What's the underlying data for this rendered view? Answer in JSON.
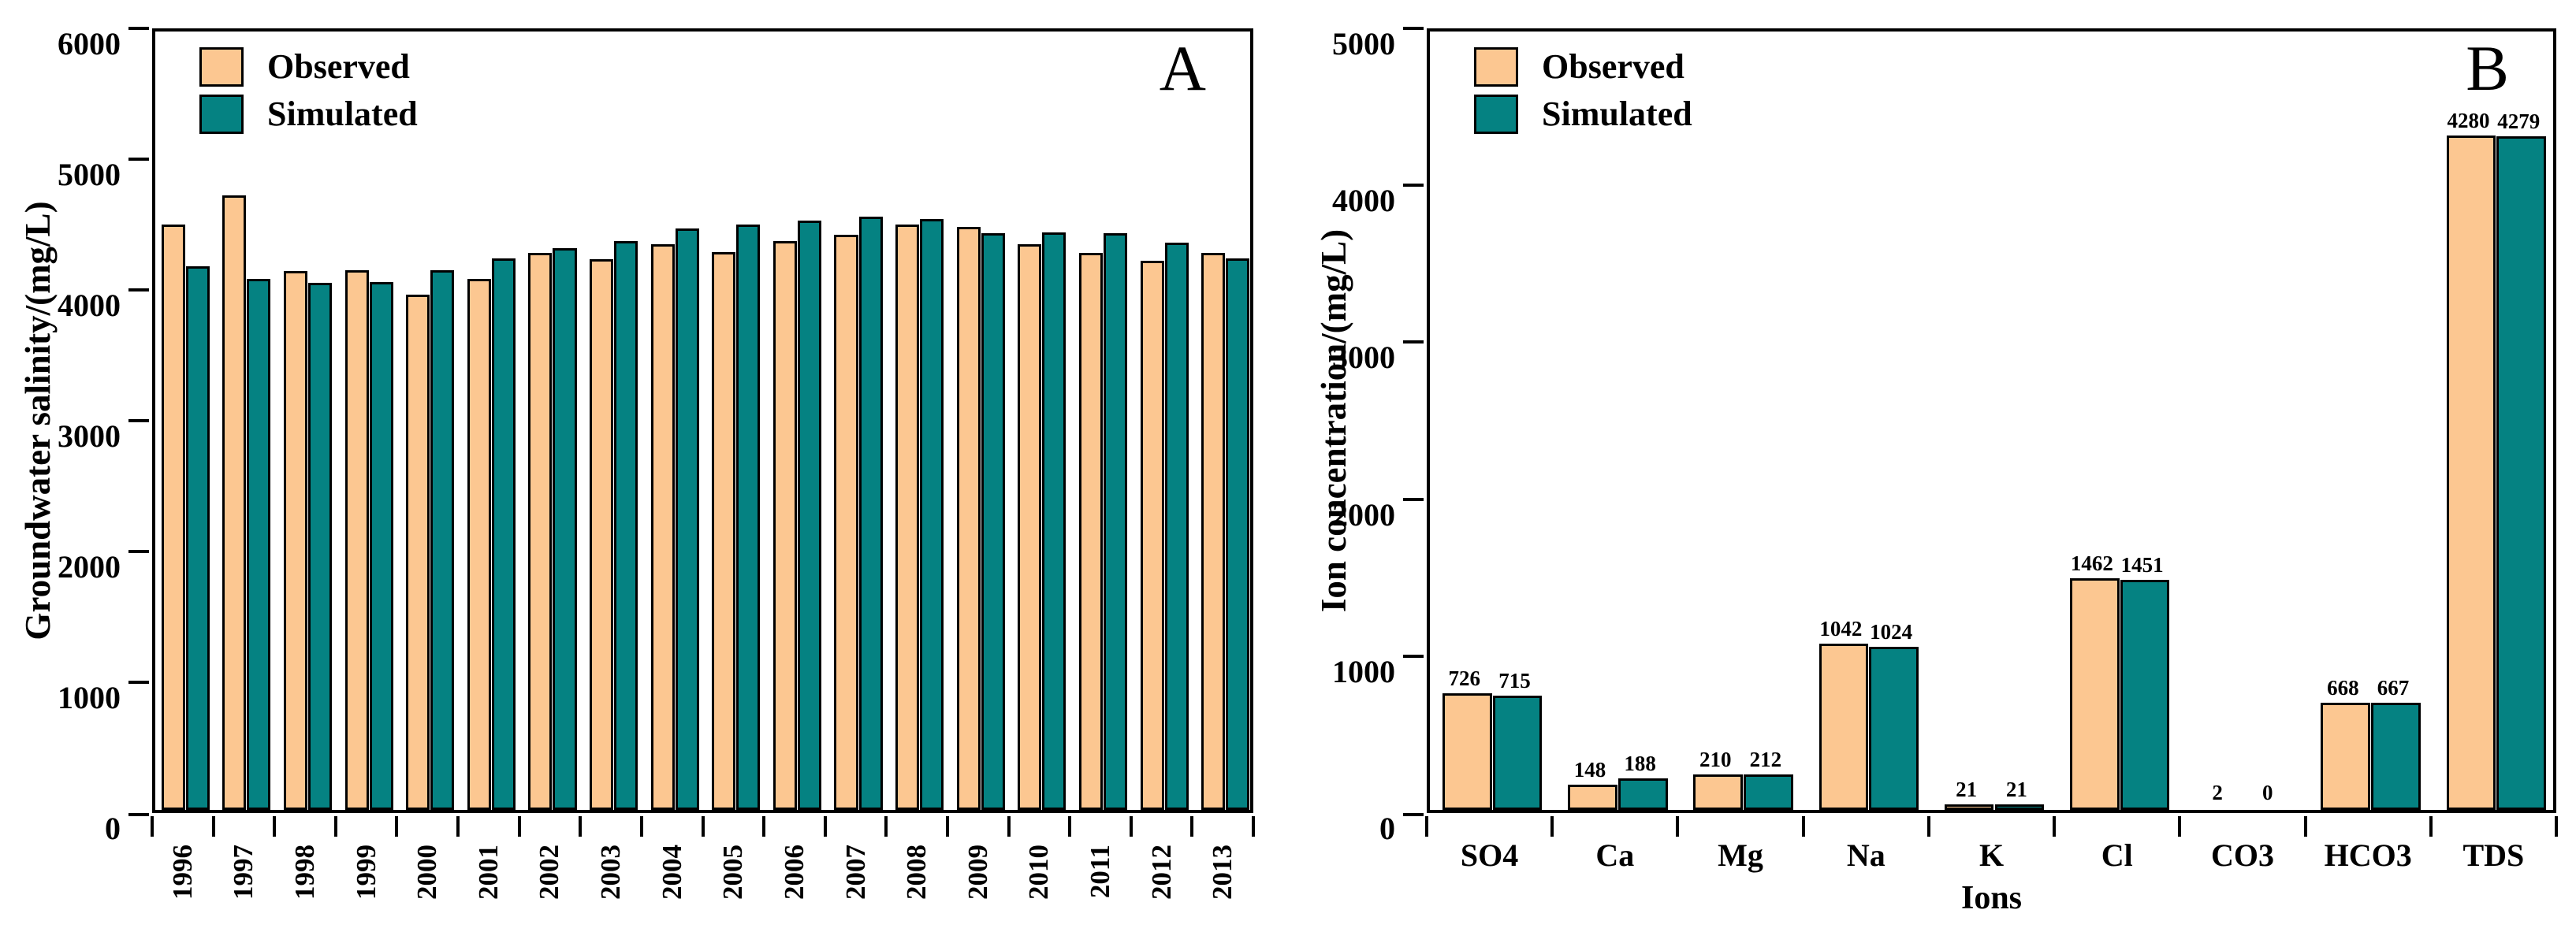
{
  "figure": {
    "background": "#ffffff",
    "axis_color": "#000000",
    "text_color": "#000000"
  },
  "chart_data": [
    {
      "id": "A",
      "type": "bar",
      "panel_label": "A",
      "title": "",
      "ylabel": "Groundwater salinity/(mg/L)",
      "xlabel": "",
      "ylim": [
        0,
        6000
      ],
      "ytick_step": 1000,
      "ytick_labels": [
        "0",
        "1000",
        "2000",
        "3000",
        "4000",
        "5000",
        "6000"
      ],
      "grid": "off",
      "legend_position": "top-left-inside",
      "legend": [
        "Observed",
        "Simulated"
      ],
      "x_tick_label_rotation": -90,
      "show_value_labels": false,
      "categories": [
        "1996",
        "1997",
        "1998",
        "1999",
        "2000",
        "2001",
        "2002",
        "2003",
        "2004",
        "2005",
        "2006",
        "2007",
        "2008",
        "2009",
        "2010",
        "2011",
        "2012",
        "2013"
      ],
      "series": [
        {
          "name": "Observed",
          "color": "#fcc791",
          "values": [
            4460,
            4680,
            4100,
            4110,
            3920,
            4040,
            4240,
            4190,
            4310,
            4250,
            4330,
            4380,
            4460,
            4440,
            4310,
            4240,
            4180,
            4240
          ]
        },
        {
          "name": "Simulated",
          "color": "#058282",
          "values": [
            4140,
            4040,
            4010,
            4020,
            4110,
            4200,
            4280,
            4330,
            4430,
            4460,
            4490,
            4520,
            4500,
            4390,
            4400,
            4390,
            4320,
            4200
          ]
        }
      ]
    },
    {
      "id": "B",
      "type": "bar",
      "panel_label": "B",
      "title": "",
      "ylabel": "Ion concentration/(mg/L)",
      "xlabel": "Ions",
      "ylim": [
        0,
        5000
      ],
      "ytick_step": 1000,
      "ytick_labels": [
        "0",
        "1000",
        "2000",
        "3000",
        "4000",
        "5000"
      ],
      "grid": "off",
      "legend_position": "top-left-inside",
      "legend": [
        "Observed",
        "Simulated"
      ],
      "x_tick_label_rotation": 0,
      "show_value_labels": true,
      "categories": [
        "SO4",
        "Ca",
        "Mg",
        "Na",
        "K",
        "Cl",
        "CO3",
        "HCO3",
        "TDS"
      ],
      "series": [
        {
          "name": "Observed",
          "color": "#fcc791",
          "values": [
            726,
            148,
            210,
            1042,
            21,
            1462,
            2,
            668,
            4280
          ]
        },
        {
          "name": "Simulated",
          "color": "#058282",
          "values": [
            715,
            188,
            212,
            1024,
            21,
            1451,
            0,
            667,
            4279
          ]
        }
      ]
    }
  ]
}
